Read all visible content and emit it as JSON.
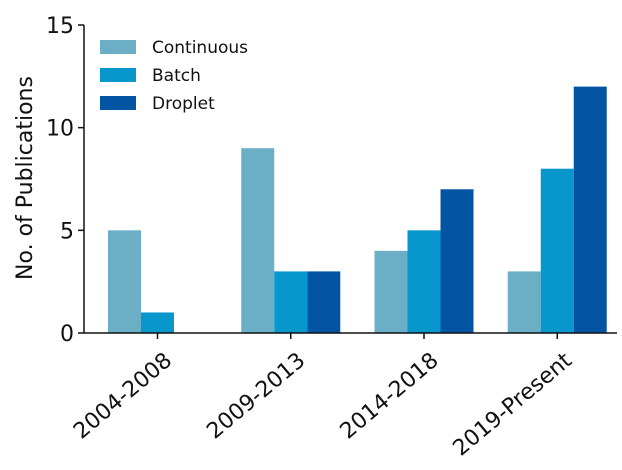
{
  "chart_data": {
    "type": "bar",
    "categories": [
      "2004-2008",
      "2009-2013",
      "2014-2018",
      "2019-Present"
    ],
    "series": [
      {
        "name": "Continuous",
        "values": [
          5,
          9,
          4,
          3
        ],
        "color": "#6aafc5"
      },
      {
        "name": "Batch",
        "values": [
          1,
          3,
          5,
          8
        ],
        "color": "#0797cc"
      },
      {
        "name": "Droplet",
        "values": [
          0,
          3,
          7,
          12
        ],
        "color": "#0355a3"
      }
    ],
    "title": "",
    "xlabel": "",
    "ylabel": "No. of Publications",
    "ylim": [
      0,
      15
    ],
    "yticks": [
      0,
      5,
      10,
      15
    ],
    "grid": false,
    "legend": "top-left"
  }
}
